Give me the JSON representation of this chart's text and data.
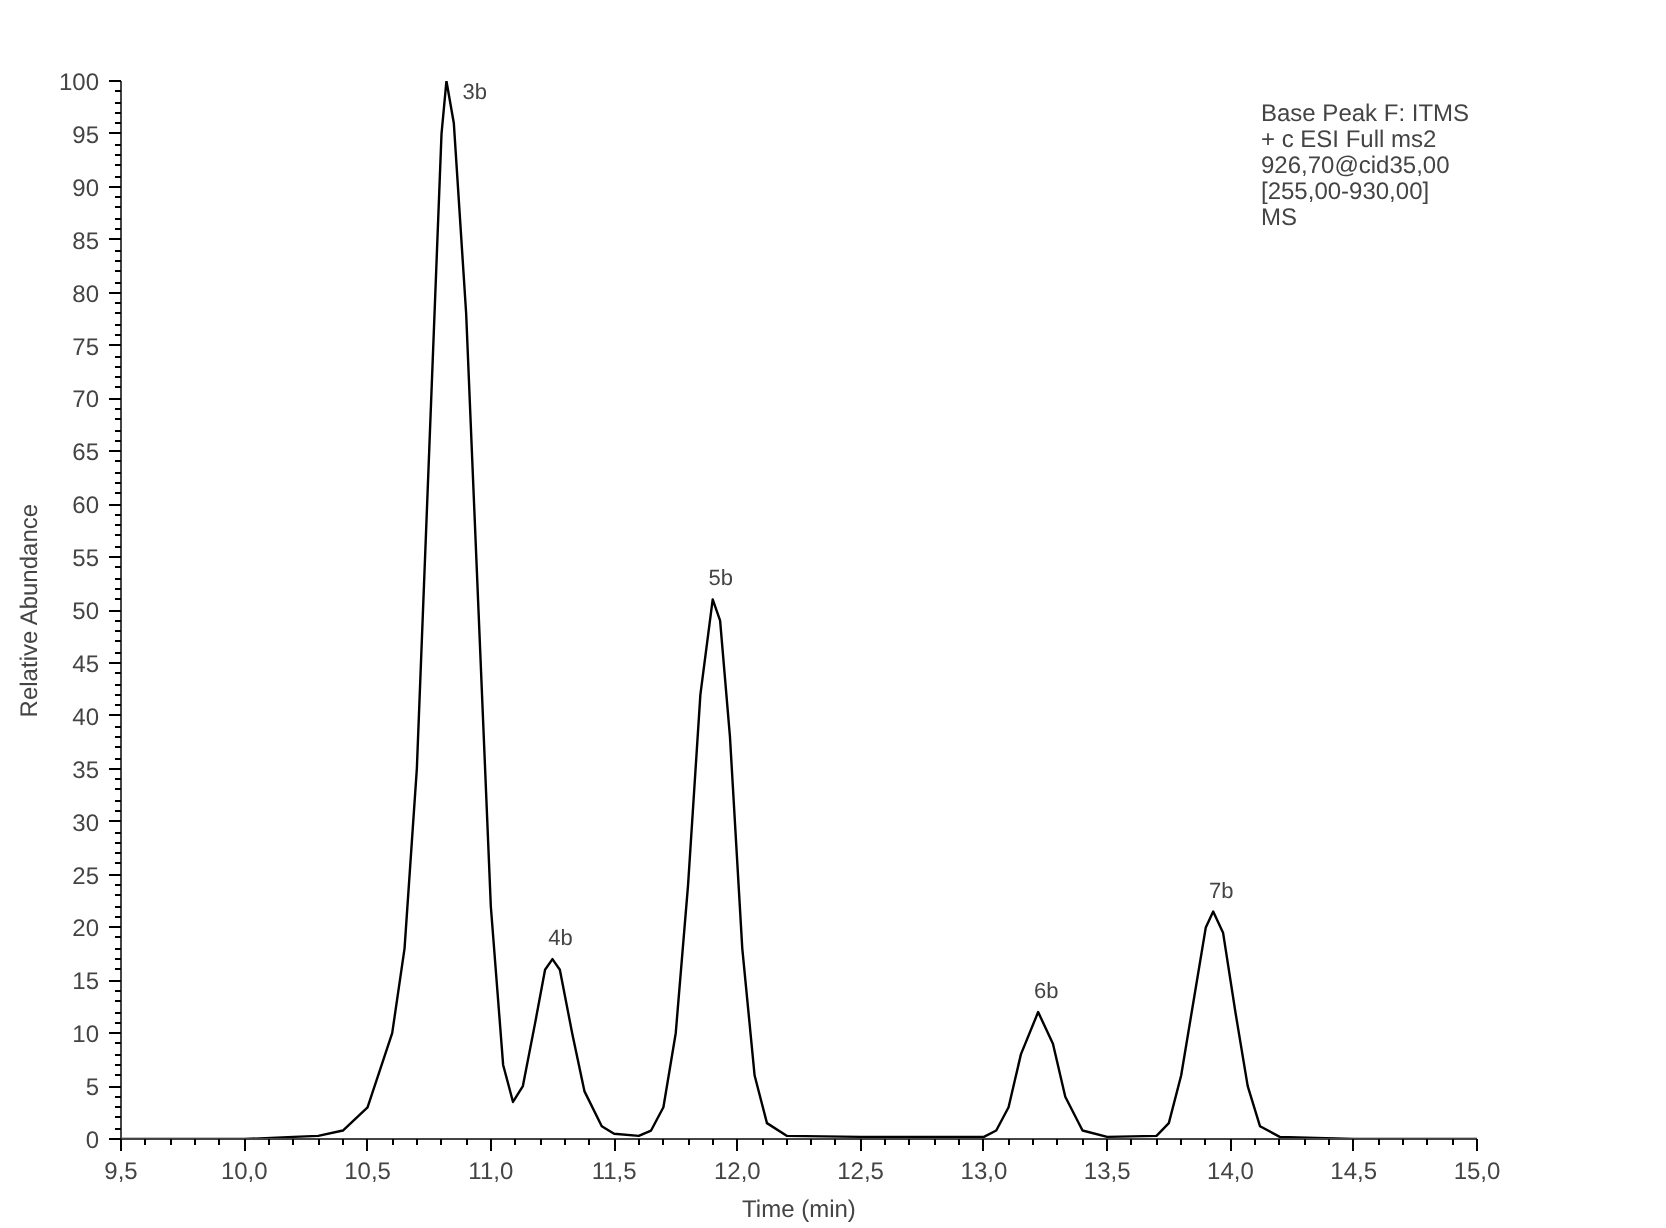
{
  "chart_data": {
    "type": "line",
    "xlabel": "Time (min)",
    "ylabel": "Relative Abundance",
    "x": [
      9.5,
      10.0,
      10.2,
      10.3,
      10.4,
      10.5,
      10.6,
      10.65,
      10.7,
      10.75,
      10.8,
      10.82,
      10.85,
      10.9,
      10.95,
      11.0,
      11.05,
      11.09,
      11.13,
      11.18,
      11.22,
      11.25,
      11.28,
      11.33,
      11.38,
      11.45,
      11.5,
      11.6,
      11.65,
      11.7,
      11.75,
      11.8,
      11.85,
      11.9,
      11.93,
      11.97,
      12.02,
      12.07,
      12.12,
      12.2,
      12.5,
      13.0,
      13.05,
      13.1,
      13.15,
      13.22,
      13.28,
      13.33,
      13.4,
      13.5,
      13.7,
      13.75,
      13.8,
      13.85,
      13.9,
      13.93,
      13.97,
      14.02,
      14.07,
      14.12,
      14.2,
      14.5,
      15.0
    ],
    "series": [
      {
        "color": "#000000",
        "values": [
          0,
          0,
          0.2,
          0.3,
          0.8,
          3,
          10,
          18,
          35,
          65,
          95,
          100,
          96,
          78,
          50,
          22,
          7,
          3.5,
          5,
          11,
          16,
          17,
          16,
          10,
          4.5,
          1.2,
          0.5,
          0.3,
          0.8,
          3,
          10,
          24,
          42,
          51,
          49,
          38,
          18,
          6,
          1.5,
          0.3,
          0.2,
          0.2,
          0.8,
          3,
          8,
          12,
          9,
          4,
          0.8,
          0.2,
          0.3,
          1.5,
          6,
          13,
          20,
          21.5,
          19.5,
          12,
          5,
          1.2,
          0.2,
          0,
          0
        ]
      }
    ],
    "xlim": [
      9.5,
      15.0
    ],
    "xticks": [
      {
        "value": 9.5,
        "label": "9,5"
      },
      {
        "value": 10.0,
        "label": "10,0"
      },
      {
        "value": 10.5,
        "label": "10,5"
      },
      {
        "value": 11.0,
        "label": "11,0"
      },
      {
        "value": 11.5,
        "label": "11,5"
      },
      {
        "value": 12.0,
        "label": "12,0"
      },
      {
        "value": 12.5,
        "label": "12,5"
      },
      {
        "value": 13.0,
        "label": "13,0"
      },
      {
        "value": 13.5,
        "label": "13,5"
      },
      {
        "value": 14.0,
        "label": "14,0"
      },
      {
        "value": 14.5,
        "label": "14,5"
      },
      {
        "value": 15.0,
        "label": "15,0"
      }
    ],
    "ylim": [
      0,
      100
    ],
    "yticks": [
      0,
      5,
      10,
      15,
      20,
      25,
      30,
      35,
      40,
      45,
      50,
      55,
      60,
      65,
      70,
      75,
      80,
      85,
      90,
      95,
      100
    ],
    "grid": false,
    "marker": "none",
    "line_style": "solid",
    "annotations": [
      {
        "text": "3b",
        "x": 10.82,
        "y": 100
      },
      {
        "text": "4b",
        "x": 11.25,
        "y": 17
      },
      {
        "text": "5b",
        "x": 11.9,
        "y": 51
      },
      {
        "text": "6b",
        "x": 13.22,
        "y": 12
      },
      {
        "text": "7b",
        "x": 13.93,
        "y": 21.5
      },
      "Base Peak F: ITMS",
      "+ c ESI Full ms2",
      "926,70@cid35,00",
      "[255,00-930,00]",
      "MS"
    ]
  }
}
